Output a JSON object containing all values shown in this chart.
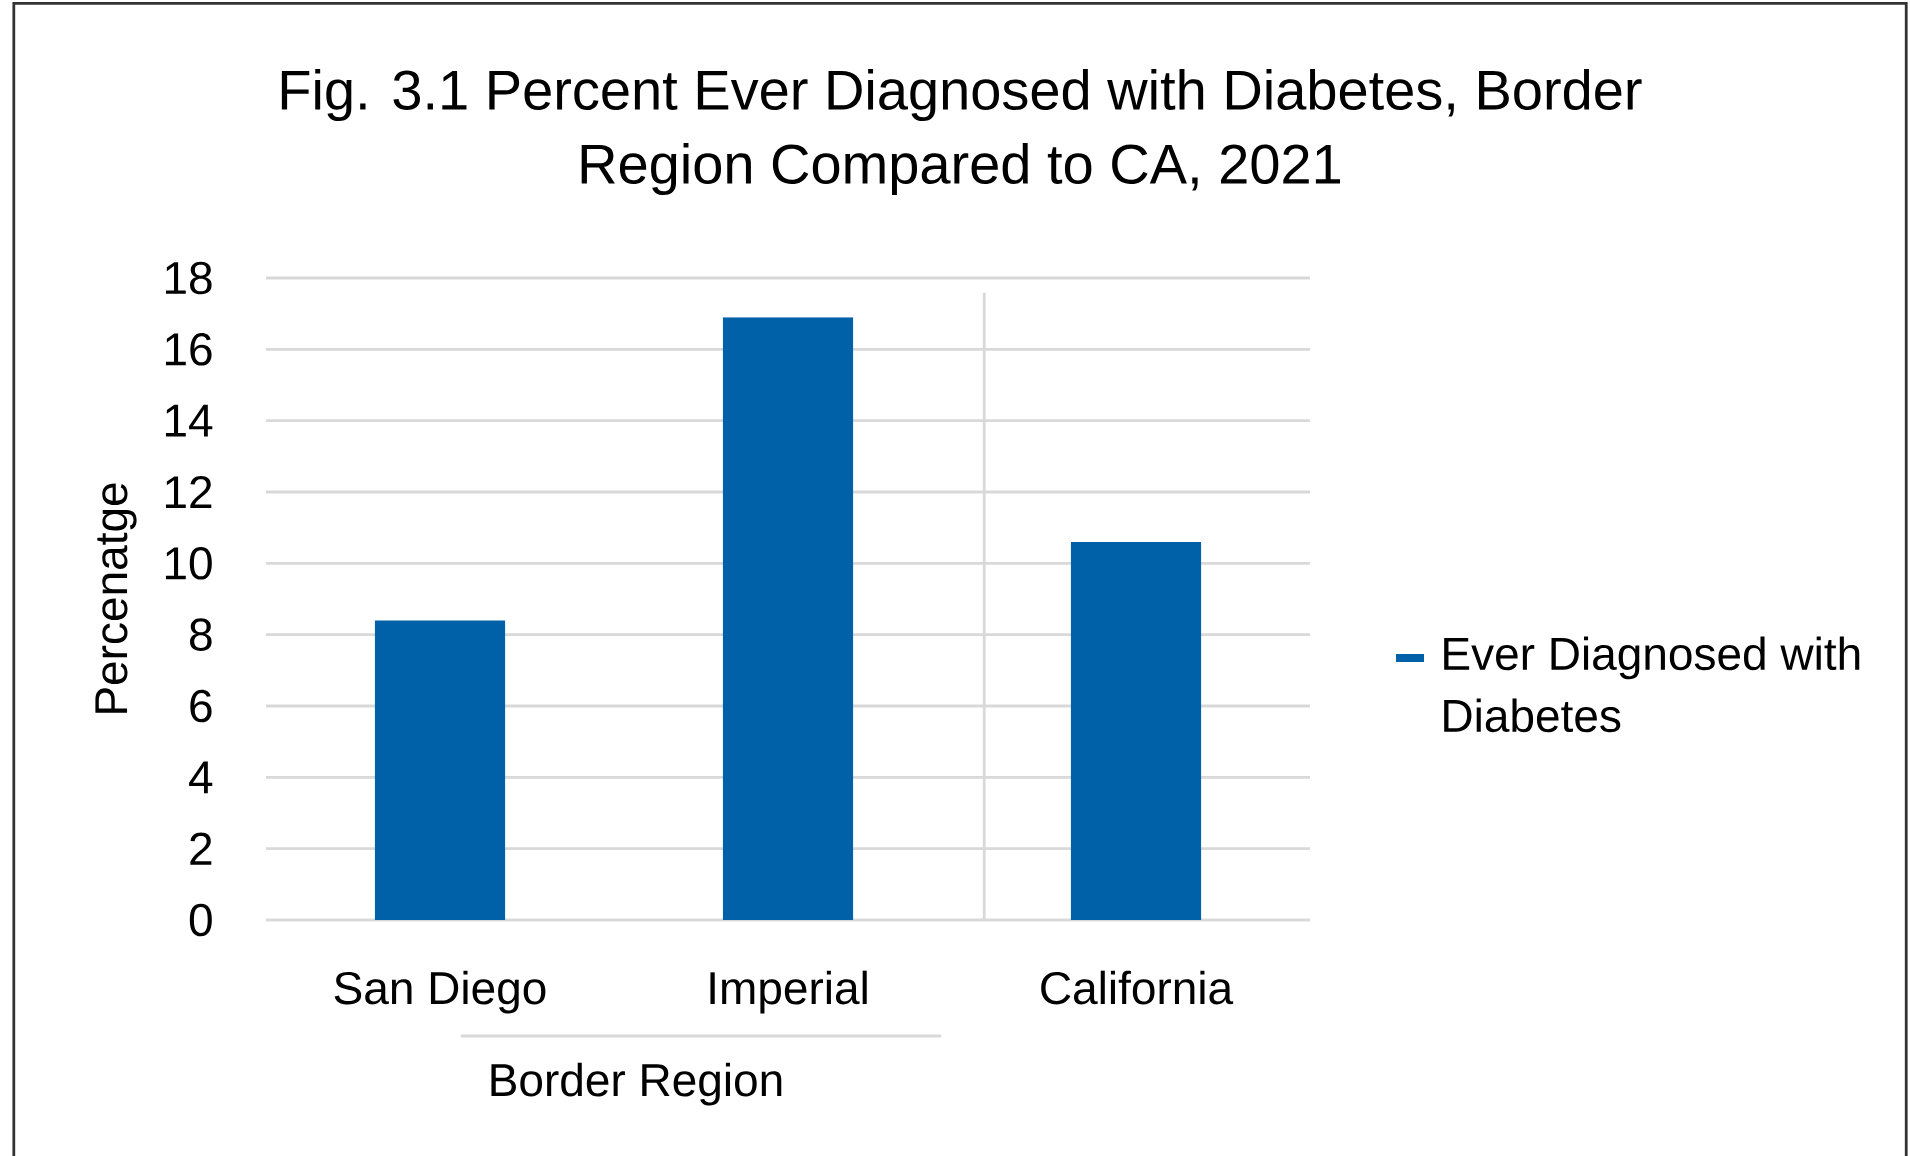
{
  "chart_data": {
    "type": "bar",
    "title": "Fig. 3.1 Percent Ever Diagnosed with Diabetes, Border Region Compared to CA, 2021",
    "categories": [
      "San Diego",
      "Imperial",
      "California"
    ],
    "series": [
      {
        "name": "Ever Diagnosed with Diabetes",
        "color": "#0060a8",
        "values": [
          8.4,
          16.9,
          10.6
        ]
      }
    ],
    "ylabel": "Percenatge",
    "ylim": [
      0,
      18
    ],
    "yticks": [
      0,
      2,
      4,
      6,
      8,
      10,
      12,
      14,
      16,
      18
    ],
    "grid": "y",
    "legend": "right",
    "annotations": [
      "Border Region"
    ]
  }
}
